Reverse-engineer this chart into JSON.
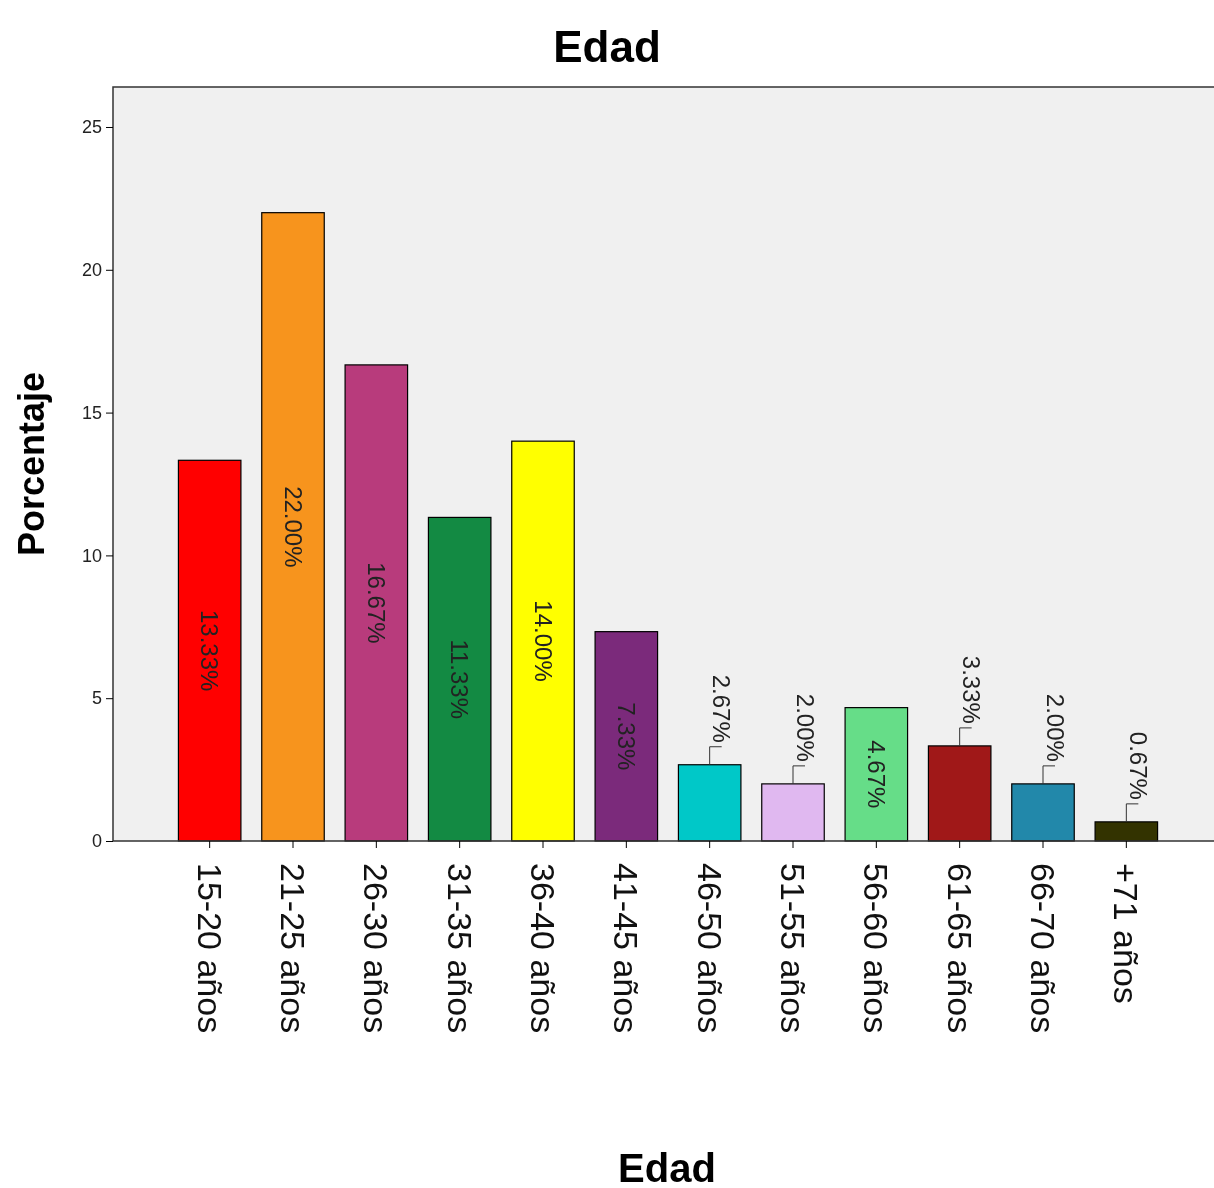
{
  "chart_data": {
    "type": "bar",
    "title": "Edad",
    "xlabel": "Edad",
    "ylabel": "Porcentaje",
    "categories": [
      "15-20 años",
      "21-25 años",
      "26-30 años",
      "31-35 años",
      "36-40 años",
      "41-45 años",
      "46-50 años",
      "51-55 años",
      "56-60 años",
      "61-65 años",
      "66-70 años",
      "+71 años"
    ],
    "values": [
      13.33,
      22.0,
      16.67,
      11.33,
      14.0,
      7.33,
      2.67,
      2.0,
      4.67,
      3.33,
      2.0,
      0.67
    ],
    "colors": [
      "#ff0000",
      "#f7941d",
      "#b83b7c",
      "#138a43",
      "#ffff00",
      "#7b2a7b",
      "#00c8c8",
      "#e0b8f0",
      "#66dd88",
      "#a01818",
      "#2288aa",
      "#333300"
    ],
    "value_labels": [
      "13.33%",
      "22.00%",
      "16.67%",
      "11.33%",
      "14.00%",
      "7.33%",
      "2.67%",
      "2.00%",
      "4.67%",
      "3.33%",
      "2.00%",
      "0.67%"
    ],
    "ylim": [
      0,
      26.4
    ],
    "yticks": [
      0,
      5,
      10,
      15,
      20,
      25
    ],
    "grid": false
  }
}
